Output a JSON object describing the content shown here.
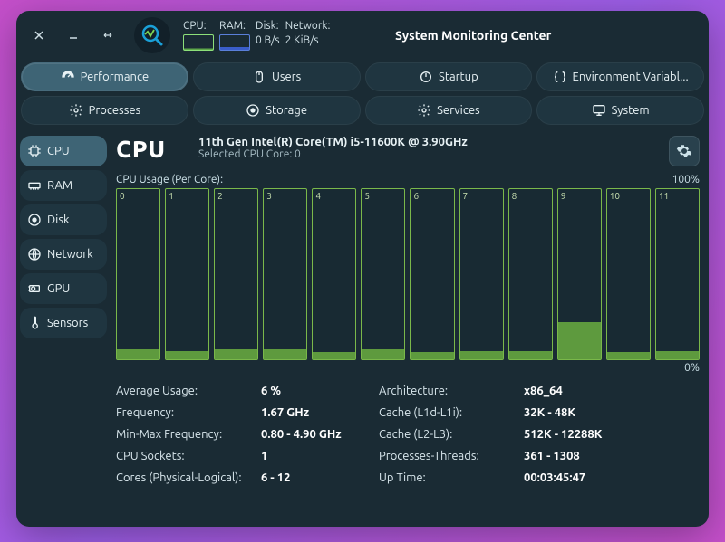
{
  "titlebar": {
    "app_title": "System Monitoring Center",
    "stats": {
      "cpu_label": "CPU:",
      "ram_label": "RAM:",
      "disk_label": "Disk:",
      "disk_value": "0 B/s",
      "net_label": "Network:",
      "net_value": "2 KiB/s"
    }
  },
  "toolbar": [
    {
      "id": "performance",
      "label": "Performance",
      "active": true,
      "icon": "gauge"
    },
    {
      "id": "users",
      "label": "Users",
      "active": false,
      "icon": "mouse"
    },
    {
      "id": "startup",
      "label": "Startup",
      "active": false,
      "icon": "power"
    },
    {
      "id": "env",
      "label": "Environment Variabl...",
      "active": false,
      "icon": "braces"
    },
    {
      "id": "processes",
      "label": "Processes",
      "active": false,
      "icon": "gear"
    },
    {
      "id": "storage",
      "label": "Storage",
      "active": false,
      "icon": "disk"
    },
    {
      "id": "services",
      "label": "Services",
      "active": false,
      "icon": "gear"
    },
    {
      "id": "system",
      "label": "System",
      "active": false,
      "icon": "monitor"
    }
  ],
  "sidebar": [
    {
      "id": "cpu",
      "label": "CPU",
      "active": true,
      "icon": "chip"
    },
    {
      "id": "ram",
      "label": "RAM",
      "active": false,
      "icon": "ram"
    },
    {
      "id": "disk",
      "label": "Disk",
      "active": false,
      "icon": "disk"
    },
    {
      "id": "network",
      "label": "Network",
      "active": false,
      "icon": "globe"
    },
    {
      "id": "gpu",
      "label": "GPU",
      "active": false,
      "icon": "gpu"
    },
    {
      "id": "sensors",
      "label": "Sensors",
      "active": false,
      "icon": "thermo"
    }
  ],
  "main": {
    "title": "CPU",
    "model": "11th Gen Intel(R) Core(TM) i5-11600K @ 3.90GHz",
    "selected": "Selected CPU Core: 0",
    "chart_title": "CPU Usage (Per Core):",
    "y_max": "100%",
    "y_min": "0%",
    "cores": [
      {
        "label": "0",
        "pct": 6
      },
      {
        "label": "1",
        "pct": 5
      },
      {
        "label": "2",
        "pct": 6
      },
      {
        "label": "3",
        "pct": 6
      },
      {
        "label": "4",
        "pct": 4
      },
      {
        "label": "5",
        "pct": 6
      },
      {
        "label": "6",
        "pct": 4
      },
      {
        "label": "7",
        "pct": 5
      },
      {
        "label": "8",
        "pct": 5
      },
      {
        "label": "9",
        "pct": 22
      },
      {
        "label": "10",
        "pct": 4
      },
      {
        "label": "11",
        "pct": 5
      }
    ],
    "core_border_color": "#7ab84a",
    "core_fill_color": "#5e9a3e",
    "info": [
      {
        "label": "Average Usage:",
        "value": "6 %"
      },
      {
        "label": "Architecture:",
        "value": "x86_64"
      },
      {
        "label": "Frequency:",
        "value": "1.67 GHz"
      },
      {
        "label": "Cache (L1d-L1i):",
        "value": "32K - 48K"
      },
      {
        "label": "Min-Max Frequency:",
        "value": "0.80 - 4.90 GHz"
      },
      {
        "label": "Cache (L2-L3):",
        "value": "512K - 12288K"
      },
      {
        "label": "CPU Sockets:",
        "value": "1"
      },
      {
        "label": "Processes-Threads:",
        "value": "361 - 1308"
      },
      {
        "label": "Cores (Physical-Logical):",
        "value": "6 - 12"
      },
      {
        "label": "Up Time:",
        "value": "00:03:45:47"
      }
    ]
  },
  "colors": {
    "window_bg": "#1a2b34",
    "pill_bg": "#1f3540",
    "pill_active": "#3e6475",
    "accent_green": "#5e9a3e"
  }
}
